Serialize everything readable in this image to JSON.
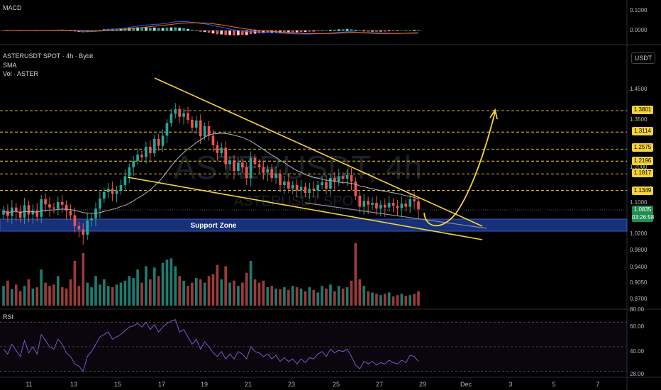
{
  "macd_pane": {
    "title": "MACD",
    "axis_labels": [
      "0.1000",
      "0.0000"
    ]
  },
  "main_pane": {
    "symbol_line": "ASTERUSDT SPOT · 4h · Bybit",
    "sma_label": "SMA",
    "vol_label": "Vol · ASTER",
    "unit": "USDT",
    "watermark": "ASTERUSDT, 4h",
    "watermark_sub": "ASTERUSDT SPOT",
    "support_zone_label": "Support Zone",
    "axis_labels": [
      "1.4500",
      "1.3500",
      "1.2000",
      "1.1000",
      "1.0200",
      "0.9800",
      "0.9400",
      "0.9050",
      "0.8700"
    ],
    "price_levels": [
      {
        "value": "1.3801",
        "color": "#f5d23a"
      },
      {
        "value": "1.3114",
        "color": "#f5d23a"
      },
      {
        "value": "1.2575",
        "color": "#f5d23a"
      },
      {
        "value": "1.2196",
        "color": "#f5d23a"
      },
      {
        "value": "1.1817",
        "color": "#f5d23a"
      },
      {
        "value": "1.1349",
        "color": "#f5d23a"
      }
    ],
    "current_price": "1.0835",
    "countdown": "03:26:58"
  },
  "rsi_pane": {
    "title": "RSI",
    "axis_labels": [
      "80.00",
      "60.00",
      "40.00",
      "28.00"
    ]
  },
  "time_axis": [
    "11",
    "13",
    "15",
    "17",
    "19",
    "21",
    "23",
    "25",
    "27",
    "29",
    "Dec",
    "3",
    "5",
    "7"
  ],
  "colors": {
    "bull": "#26a69a",
    "bear": "#ef5350",
    "pattern": "#f5d23a",
    "support": "#1b3a8c",
    "rsi": "#7e57c2"
  },
  "chart_data": {
    "type": "candlestick",
    "series_open_first": 1.07,
    "closes": [
      1.08,
      1.066,
      1.088,
      1.078,
      1.062,
      1.094,
      1.07,
      1.08,
      1.064,
      1.11,
      1.096,
      1.088,
      1.085,
      1.102,
      1.095,
      1.08,
      1.068,
      1.04,
      1.032,
      1.018,
      1.055,
      1.06,
      1.085,
      1.112,
      1.13,
      1.14,
      1.125,
      1.135,
      1.15,
      1.175,
      1.2,
      1.22,
      1.24,
      1.232,
      1.265,
      1.245,
      1.29,
      1.268,
      1.3,
      1.34,
      1.37,
      1.385,
      1.36,
      1.372,
      1.35,
      1.325,
      1.348,
      1.298,
      1.33,
      1.3,
      1.27,
      1.245,
      1.262,
      1.21,
      1.222,
      1.19,
      1.215,
      1.2,
      1.17,
      1.23,
      1.21,
      1.2,
      1.185,
      1.195,
      1.17,
      1.182,
      1.15,
      1.16,
      1.14,
      1.15,
      1.135,
      1.145,
      1.128,
      1.14,
      1.135,
      1.15,
      1.158,
      1.14,
      1.17,
      1.16,
      1.175,
      1.168,
      1.178,
      1.16,
      1.12,
      1.09,
      1.105,
      1.095,
      1.1,
      1.085,
      1.095,
      1.088,
      1.1,
      1.092,
      1.086,
      1.098,
      1.09,
      1.11,
      1.104,
      1.0835
    ],
    "volume": [
      30,
      38,
      25,
      32,
      22,
      30,
      40,
      26,
      28,
      55,
      35,
      30,
      32,
      45,
      28,
      26,
      40,
      68,
      30,
      80,
      35,
      28,
      45,
      32,
      40,
      30,
      28,
      32,
      35,
      38,
      45,
      42,
      55,
      35,
      60,
      40,
      58,
      45,
      65,
      70,
      72,
      60,
      45,
      38,
      30,
      35,
      42,
      40,
      35,
      45,
      48,
      62,
      40,
      60,
      35,
      38,
      30,
      35,
      50,
      68,
      40,
      35,
      38,
      28,
      30,
      26,
      25,
      28,
      24,
      30,
      28,
      26,
      22,
      28,
      24,
      20,
      30,
      26,
      32,
      22,
      30,
      26,
      28,
      38,
      95,
      40,
      30,
      22,
      20,
      18,
      16,
      18,
      20,
      14,
      16,
      18,
      15,
      16,
      18,
      22
    ],
    "rsi": [
      48,
      44,
      52,
      47,
      42,
      55,
      45,
      50,
      44,
      60,
      55,
      50,
      48,
      56,
      52,
      45,
      42,
      36,
      34,
      30,
      42,
      46,
      52,
      58,
      60,
      62,
      56,
      58,
      60,
      63,
      66,
      67,
      69,
      66,
      70,
      64,
      68,
      62,
      66,
      69,
      71,
      72,
      62,
      64,
      58,
      52,
      56,
      48,
      54,
      50,
      45,
      42,
      46,
      40,
      44,
      40,
      46,
      44,
      40,
      50,
      46,
      45,
      42,
      44,
      40,
      43,
      38,
      41,
      38,
      40,
      36,
      40,
      37,
      41,
      40,
      44,
      46,
      42,
      48,
      45,
      47,
      46,
      48,
      42,
      35,
      32,
      38,
      36,
      38,
      35,
      37,
      36,
      39,
      37,
      36,
      39,
      37,
      43,
      42,
      38
    ]
  }
}
